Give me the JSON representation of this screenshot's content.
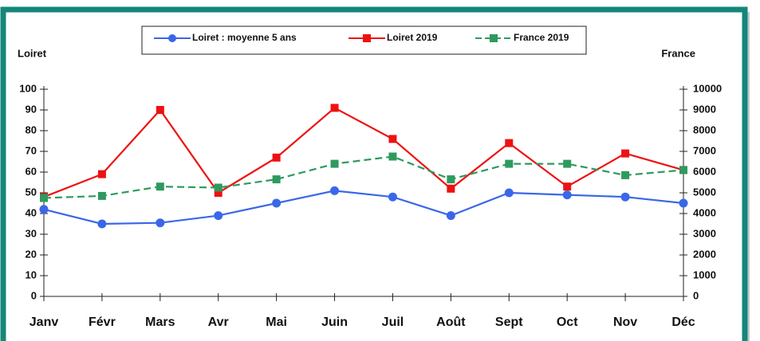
{
  "chart_data": {
    "type": "line",
    "ylabel": "Loiret",
    "y2label": "France",
    "categories": [
      "Janv",
      "Févr",
      "Mars",
      "Avr",
      "Mai",
      "Juin",
      "Juil",
      "Août",
      "Sept",
      "Oct",
      "Nov",
      "Déc"
    ],
    "series": [
      {
        "name": "Loiret : moyenne 5 ans",
        "color": "#3a67e8",
        "marker": "circle",
        "dashed": false,
        "values": [
          42,
          35,
          35.5,
          39,
          45,
          51,
          48,
          39,
          50,
          49,
          48,
          45
        ]
      },
      {
        "name": "Loiret 2019",
        "color": "#ee1111",
        "marker": "square",
        "dashed": false,
        "values": [
          48,
          59,
          90,
          50,
          67,
          91,
          76,
          52,
          74,
          53,
          69,
          61
        ]
      },
      {
        "name": "France 2019",
        "color": "#2e9a5e",
        "marker": "square",
        "dashed": true,
        "axis": "y2",
        "values": [
          4750,
          4850,
          5300,
          5250,
          5650,
          6400,
          6750,
          5650,
          6400,
          6400,
          5850,
          6100
        ]
      }
    ],
    "ylim": [
      0,
      100
    ],
    "yticks": [
      0,
      10,
      20,
      30,
      40,
      50,
      60,
      70,
      80,
      90,
      100
    ],
    "y2lim": [
      0,
      10000
    ],
    "y2ticks": [
      0,
      1000,
      2000,
      3000,
      4000,
      5000,
      6000,
      7000,
      8000,
      9000,
      10000
    ]
  }
}
